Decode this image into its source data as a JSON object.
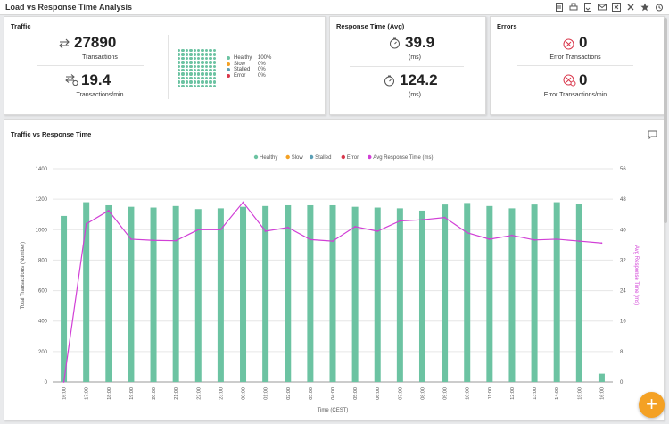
{
  "window": {
    "title": "Load vs Response Time Analysis"
  },
  "toolbar": {
    "icons": [
      "export-pdf-icon",
      "print-icon",
      "export-icon",
      "email-icon",
      "excel-icon",
      "close-icon",
      "star-icon",
      "alarm-icon"
    ]
  },
  "traffic": {
    "title": "Traffic",
    "transactions_value": "27890",
    "transactions_label": "Transactions",
    "tpm_value": "19.4",
    "tpm_label": "Transactions/min",
    "legend": [
      {
        "label": "Healthy",
        "value": "100%",
        "color": "#6cc3a2"
      },
      {
        "label": "Slow",
        "value": "0%",
        "color": "#f4a124"
      },
      {
        "label": "Stalled",
        "value": "0%",
        "color": "#5b9fb6"
      },
      {
        "label": "Error",
        "value": "0%",
        "color": "#d9374b"
      }
    ]
  },
  "response": {
    "title": "Response Time (Avg)",
    "v1": "39.9",
    "u1": "(ms)",
    "v2": "124.2",
    "u2": "(ms)"
  },
  "errors": {
    "title": "Errors",
    "v1": "0",
    "l1": "Error Transactions",
    "v2": "0",
    "l2": "Error Transactions/min"
  },
  "chart_panel": {
    "title": "Traffic vs Response Time"
  },
  "chart_data": {
    "type": "bar",
    "title": "",
    "xlabel": "Time (CEST)",
    "ylabel": "Total Transactions (Number)",
    "y2label": "Avg Response Time (ms)",
    "ylim": [
      0,
      1400
    ],
    "y2lim": [
      0,
      56
    ],
    "yticks": [
      0,
      200,
      400,
      600,
      800,
      1000,
      1200,
      1400
    ],
    "y2ticks": [
      0,
      8,
      16,
      24,
      32,
      40,
      48,
      56
    ],
    "grid": true,
    "legend_position": "top-center",
    "legend": [
      {
        "name": "Healthy",
        "color": "#6cc3a2"
      },
      {
        "name": "Slow",
        "color": "#f4a124"
      },
      {
        "name": "Stalled",
        "color": "#5b9fb6"
      },
      {
        "name": "Error",
        "color": "#d9374b"
      },
      {
        "name": "Avg Response Time (ms)",
        "color": "#d13fd6"
      }
    ],
    "categories": [
      "16:00",
      "17:00",
      "18:00",
      "19:00",
      "20:00",
      "21:00",
      "22:00",
      "23:00",
      "00:00",
      "01:00",
      "02:00",
      "03:00",
      "04:00",
      "05:00",
      "06:00",
      "07:00",
      "08:00",
      "09:00",
      "10:00",
      "11:00",
      "12:00",
      "13:00",
      "14:00",
      "15:00",
      "16:00"
    ],
    "series": [
      {
        "name": "Healthy",
        "type": "bar",
        "axis": "left",
        "color": "#6cc3a2",
        "values": [
          1090,
          1180,
          1160,
          1150,
          1145,
          1155,
          1135,
          1140,
          1150,
          1155,
          1160,
          1160,
          1160,
          1150,
          1145,
          1140,
          1125,
          1165,
          1175,
          1155,
          1140,
          1165,
          1180,
          1170,
          55
        ]
      },
      {
        "name": "Avg Response Time (ms)",
        "type": "line",
        "axis": "right",
        "color": "#d13fd6",
        "values": [
          0,
          41.5,
          45,
          37.5,
          37.2,
          37.1,
          40,
          40,
          47.2,
          39.6,
          40.6,
          37.4,
          37,
          40.8,
          39.6,
          42.3,
          42.6,
          43.2,
          39.2,
          37.5,
          38.5,
          37.3,
          37.5,
          37,
          36.5
        ]
      }
    ]
  }
}
